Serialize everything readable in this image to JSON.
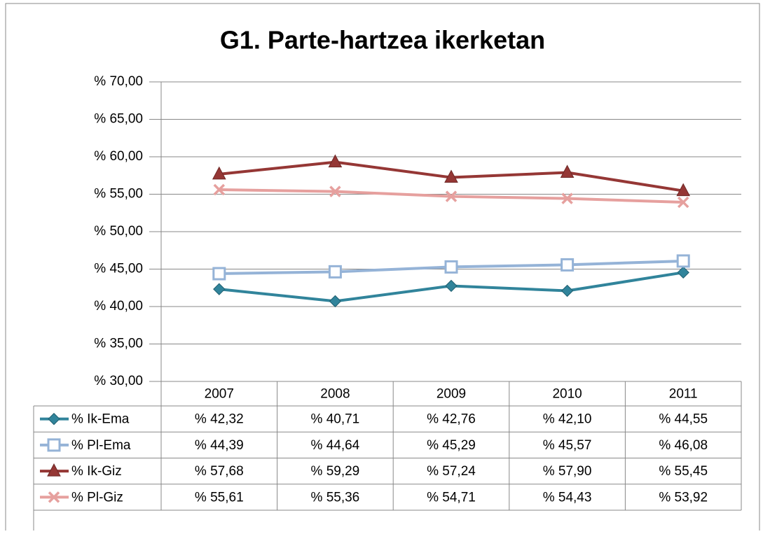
{
  "chart_data": {
    "type": "line",
    "title": "G1. Parte-hartzea ikerketan",
    "categories": [
      "2007",
      "2008",
      "2009",
      "2010",
      "2011"
    ],
    "ylim": [
      30,
      70
    ],
    "yticks": [
      {
        "value": 30,
        "label": "% 30,00"
      },
      {
        "value": 35,
        "label": "% 35,00"
      },
      {
        "value": 40,
        "label": "% 40,00"
      },
      {
        "value": 45,
        "label": "% 45,00"
      },
      {
        "value": 50,
        "label": "% 50,00"
      },
      {
        "value": 55,
        "label": "% 55,00"
      },
      {
        "value": 60,
        "label": "% 60,00"
      },
      {
        "value": 65,
        "label": "% 65,00"
      },
      {
        "value": 70,
        "label": "% 70,00"
      }
    ],
    "grid": true,
    "series": [
      {
        "name": "% Ik-Ema",
        "color": "#31849b",
        "marker": "diamond",
        "values": [
          42.32,
          40.71,
          42.76,
          42.1,
          44.55
        ],
        "value_labels": [
          "% 42,32",
          "% 40,71",
          "% 42,76",
          "% 42,10",
          "% 44,55"
        ]
      },
      {
        "name": "% Pl-Ema",
        "color": "#95b3d7",
        "marker": "square",
        "values": [
          44.39,
          44.64,
          45.29,
          45.57,
          46.08
        ],
        "value_labels": [
          "% 44,39",
          "% 44,64",
          "% 45,29",
          "% 45,57",
          "% 46,08"
        ]
      },
      {
        "name": "% Ik-Giz",
        "color": "#953735",
        "marker": "triangle",
        "values": [
          57.68,
          59.29,
          57.24,
          57.9,
          55.45
        ],
        "value_labels": [
          "% 57,68",
          "% 59,29",
          "% 57,24",
          "% 57,90",
          "% 55,45"
        ]
      },
      {
        "name": "% Pl-Giz",
        "color": "#e6a09e",
        "marker": "x",
        "values": [
          55.61,
          55.36,
          54.71,
          54.43,
          53.92
        ],
        "value_labels": [
          "% 55,61",
          "% 55,36",
          "% 54,71",
          "% 54,43",
          "% 53,92"
        ]
      }
    ]
  }
}
